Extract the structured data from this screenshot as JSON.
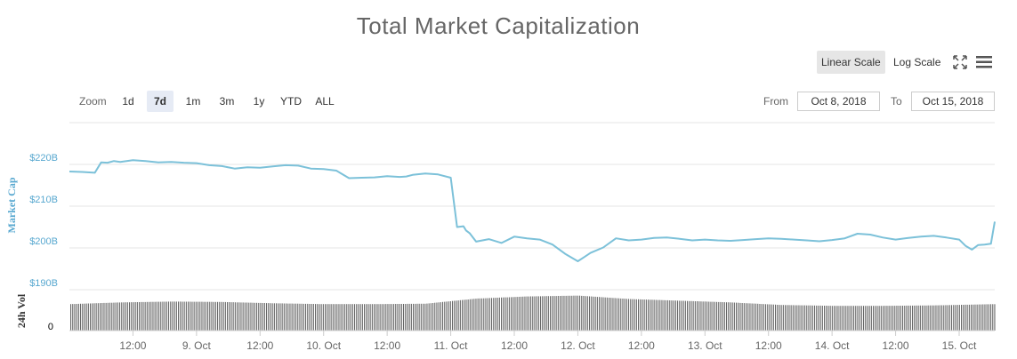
{
  "title": "Total Market Capitalization",
  "toolbar": {
    "linear_scale_label": "Linear Scale",
    "log_scale_label": "Log Scale",
    "active_scale": "Linear Scale",
    "fullscreen_icon": "fullscreen-icon",
    "menu_icon": "hamburger-menu-icon"
  },
  "range_selector": {
    "zoom_label": "Zoom",
    "buttons": [
      "1d",
      "7d",
      "1m",
      "3m",
      "1y",
      "YTD",
      "ALL"
    ],
    "active": "7d",
    "from_label": "From",
    "from_value": "Oct 8, 2018",
    "to_label": "To",
    "to_value": "Oct 15, 2018"
  },
  "colors": {
    "line": "#7cc1d9",
    "volume": "#666666",
    "axis_text": "#666666",
    "y_label": "#58a8d0",
    "grid": "#e6e6e6"
  },
  "chart_data": [
    {
      "type": "line",
      "title": "Total Market Capitalization",
      "ylabel": "Market Cap",
      "y_ticks": [
        "$190B",
        "$200B",
        "$210B",
        "$220B"
      ],
      "ylim": [
        190,
        230
      ],
      "x_ticks": [
        "12:00",
        "9. Oct",
        "12:00",
        "10. Oct",
        "12:00",
        "11. Oct",
        "12:00",
        "12. Oct",
        "12:00",
        "13. Oct",
        "12:00",
        "14. Oct",
        "12:00",
        "15. Oct"
      ],
      "x_tick_days": [
        0.5,
        1,
        1.5,
        2,
        2.5,
        3,
        3.5,
        4,
        4.5,
        5,
        5.5,
        6,
        6.5,
        7
      ],
      "grid": true,
      "series": [
        {
          "name": "Market Cap",
          "x": [
            0.0,
            0.1,
            0.2,
            0.25,
            0.3,
            0.35,
            0.4,
            0.5,
            0.6,
            0.7,
            0.8,
            0.9,
            1.0,
            1.1,
            1.2,
            1.3,
            1.4,
            1.5,
            1.6,
            1.7,
            1.8,
            1.9,
            2.0,
            2.1,
            2.2,
            2.3,
            2.4,
            2.5,
            2.6,
            2.65,
            2.7,
            2.8,
            2.9,
            3.0,
            3.05,
            3.1,
            3.12,
            3.15,
            3.2,
            3.3,
            3.4,
            3.5,
            3.6,
            3.7,
            3.8,
            3.9,
            4.0,
            4.05,
            4.1,
            4.2,
            4.3,
            4.4,
            4.5,
            4.6,
            4.7,
            4.8,
            4.9,
            5.0,
            5.1,
            5.2,
            5.3,
            5.4,
            5.5,
            5.6,
            5.7,
            5.8,
            5.9,
            6.0,
            6.1,
            6.2,
            6.3,
            6.4,
            6.5,
            6.6,
            6.7,
            6.8,
            6.9,
            7.0,
            7.05,
            7.1,
            7.15,
            7.2,
            7.25,
            7.28
          ],
          "values": [
            218.3,
            218.2,
            218.0,
            220.5,
            220.4,
            220.8,
            220.6,
            221.0,
            220.8,
            220.5,
            220.6,
            220.4,
            220.3,
            219.8,
            219.6,
            219.0,
            219.3,
            219.2,
            219.5,
            219.8,
            219.7,
            219.0,
            218.9,
            218.5,
            216.7,
            216.8,
            216.9,
            217.2,
            217.0,
            217.1,
            217.5,
            217.8,
            217.6,
            216.8,
            205.0,
            205.2,
            204.2,
            203.5,
            201.5,
            202.1,
            201.2,
            202.7,
            202.3,
            202.0,
            200.8,
            198.6,
            196.8,
            197.8,
            198.8,
            200.1,
            202.3,
            201.8,
            202.0,
            202.4,
            202.5,
            202.2,
            201.8,
            202.0,
            201.8,
            201.7,
            201.9,
            202.1,
            202.3,
            202.2,
            202.0,
            201.8,
            201.6,
            201.9,
            202.3,
            203.4,
            203.2,
            202.5,
            202.0,
            202.4,
            202.7,
            202.9,
            202.5,
            202.0,
            200.5,
            199.6,
            200.7,
            200.8,
            201.0,
            206.3
          ]
        }
      ]
    },
    {
      "type": "bar",
      "ylabel": "24h Vol",
      "y_ticks": [
        "0"
      ],
      "series": [
        {
          "name": "24h Vol",
          "x": [
            0,
            0.4,
            0.8,
            1.2,
            1.6,
            2.0,
            2.4,
            2.8,
            3.2,
            3.6,
            4.0,
            4.4,
            4.8,
            5.2,
            5.6,
            6.0,
            6.4,
            6.8,
            7.28
          ],
          "values": [
            0.62,
            0.66,
            0.68,
            0.67,
            0.64,
            0.62,
            0.62,
            0.63,
            0.75,
            0.8,
            0.82,
            0.74,
            0.7,
            0.66,
            0.6,
            0.58,
            0.58,
            0.59,
            0.62
          ]
        }
      ]
    }
  ]
}
